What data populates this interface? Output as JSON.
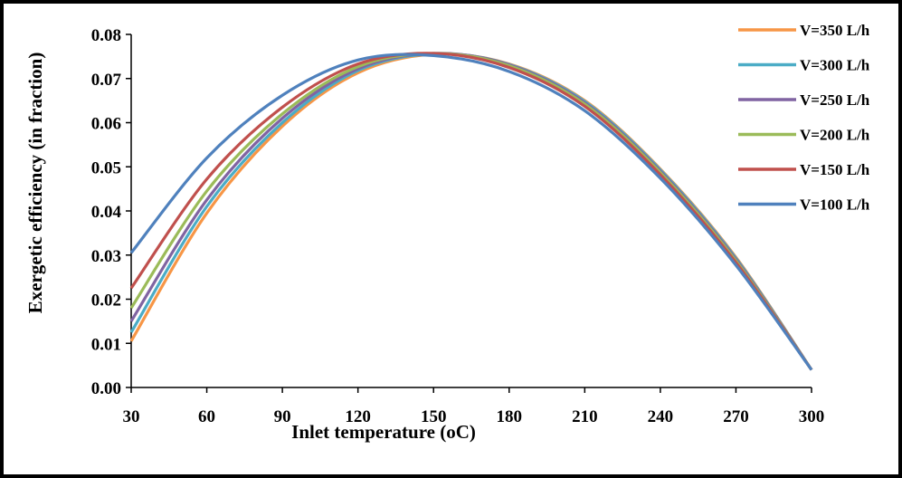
{
  "chart_data": {
    "type": "line",
    "xlabel": "Inlet temperature (oC)",
    "ylabel": "Exergetic efficiency (in fraction)",
    "xlim": [
      30,
      300
    ],
    "ylim": [
      0,
      0.08
    ],
    "x_ticks": [
      "30",
      "60",
      "90",
      "120",
      "150",
      "180",
      "210",
      "240",
      "270",
      "300"
    ],
    "y_ticks": [
      "0.00",
      "0.01",
      "0.02",
      "0.03",
      "0.04",
      "0.05",
      "0.06",
      "0.07",
      "0.08"
    ],
    "grid": false,
    "legend_position": "top-right",
    "x": [
      30,
      60,
      90,
      120,
      150,
      180,
      210,
      240,
      270,
      300
    ],
    "series": [
      {
        "name": "V=350 L/h",
        "color": "#F79646",
        "peak_x": 159,
        "values": [
          0.0105,
          0.0395,
          0.0592,
          0.0713,
          0.0755,
          0.0733,
          0.065,
          0.0495,
          0.0295,
          0.004
        ]
      },
      {
        "name": "V=300 L/h",
        "color": "#4BACC6",
        "peak_x": 158,
        "values": [
          0.0125,
          0.041,
          0.06,
          0.0718,
          0.0756,
          0.0732,
          0.0648,
          0.0493,
          0.0293,
          0.004
        ]
      },
      {
        "name": "V=250 L/h",
        "color": "#8064A2",
        "peak_x": 157,
        "values": [
          0.015,
          0.0425,
          0.061,
          0.0722,
          0.0757,
          0.0731,
          0.0645,
          0.049,
          0.029,
          0.004
        ]
      },
      {
        "name": "V=200 L/h",
        "color": "#9BBB59",
        "peak_x": 156,
        "values": [
          0.018,
          0.0445,
          0.062,
          0.0727,
          0.0757,
          0.0729,
          0.0642,
          0.0487,
          0.0287,
          0.004
        ]
      },
      {
        "name": "V=150 L/h",
        "color": "#C0504D",
        "peak_x": 154,
        "values": [
          0.0225,
          0.0472,
          0.0635,
          0.0733,
          0.0757,
          0.0725,
          0.0637,
          0.0482,
          0.0283,
          0.004
        ]
      },
      {
        "name": "V=100 L/h",
        "color": "#4F81BD",
        "peak_x": 150,
        "values": [
          0.0305,
          0.052,
          0.0662,
          0.0742,
          0.0752,
          0.0716,
          0.0627,
          0.0474,
          0.0277,
          0.004
        ]
      }
    ]
  }
}
